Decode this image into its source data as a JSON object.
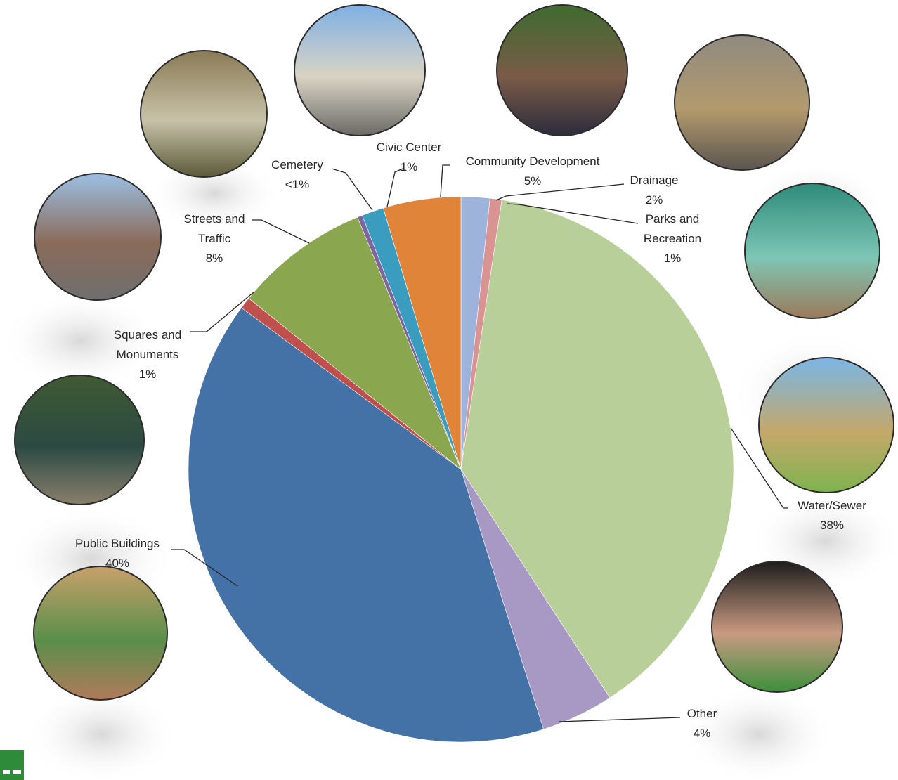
{
  "chart_data": {
    "type": "pie",
    "title": "",
    "slices": [
      {
        "name": "Drainage",
        "value": 1.7,
        "value_label": "2%",
        "color": "#9db3dc"
      },
      {
        "name": "Parks and Recreation",
        "value": 0.7,
        "value_label": "1%",
        "color": "#d99393"
      },
      {
        "name": "Water/Sewer",
        "value": 38.4,
        "value_label": "38%",
        "color": "#b8cf99"
      },
      {
        "name": "Other",
        "value": 4.3,
        "value_label": "4%",
        "color": "#a899c4"
      },
      {
        "name": "Public Buildings",
        "value": 40.0,
        "value_label": "40%",
        "color": "#4472a6"
      },
      {
        "name": "Squares and Monuments",
        "value": 0.7,
        "value_label": "1%",
        "color": "#c0504d"
      },
      {
        "name": "Streets and Traffic",
        "value": 8.0,
        "value_label": "8%",
        "color": "#8aa64f"
      },
      {
        "name": "Cemetery",
        "value": 0.3,
        "value_label": "<1%",
        "color": "#7e64a0"
      },
      {
        "name": "Civic Center",
        "value": 1.3,
        "value_label": "1%",
        "color": "#3a9cbf"
      },
      {
        "name": "Community Development",
        "value": 4.6,
        "value_label": "5%",
        "color": "#e0843a"
      }
    ],
    "start": "12 o'clock, clockwise",
    "legend": "none (leader-line data labels)"
  },
  "labels": [
    {
      "lines": [
        "Drainage",
        "2%"
      ]
    },
    {
      "lines": [
        "Parks and",
        "Recreation",
        "1%"
      ]
    },
    {
      "lines": [
        "Water/Sewer",
        "38%"
      ]
    },
    {
      "lines": [
        "Other",
        "4%"
      ]
    },
    {
      "lines": [
        "Public Buildings",
        "40%"
      ]
    },
    {
      "lines": [
        "Squares and",
        "Monuments",
        "1%"
      ]
    },
    {
      "lines": [
        "Streets and",
        "Traffic",
        "8%"
      ]
    },
    {
      "lines": [
        "Cemetery",
        "<1%"
      ]
    },
    {
      "lines": [
        "Civic Center",
        "1%"
      ]
    },
    {
      "lines": [
        "Community Development",
        "5%"
      ]
    }
  ],
  "photos": [
    {
      "name": "cemetery-photo",
      "colors": [
        "#8a7a55",
        "#c7c2a8",
        "#5c5a3a"
      ]
    },
    {
      "name": "civic-center-photo",
      "colors": [
        "#7fb0e4",
        "#d9d3c4",
        "#6b6a66"
      ]
    },
    {
      "name": "community-development-photo",
      "colors": [
        "#3f6b2f",
        "#7a5b48",
        "#2c2c3c"
      ]
    },
    {
      "name": "drainage-photo",
      "colors": [
        "#8f8a80",
        "#b39a6d",
        "#5a554f"
      ]
    },
    {
      "name": "streets-photo",
      "colors": [
        "#9cbfe3",
        "#8a6b5a",
        "#6f6f6f"
      ]
    },
    {
      "name": "playground-photo",
      "colors": [
        "#2e8b7a",
        "#7ec6b5",
        "#9b7a5a"
      ]
    },
    {
      "name": "fountain-photo",
      "colors": [
        "#3f5a32",
        "#2c4a43",
        "#8a7f6c"
      ]
    },
    {
      "name": "water-pipe-photo",
      "colors": [
        "#7ab6e6",
        "#c4a86a",
        "#7fb34f"
      ]
    },
    {
      "name": "public-buildings-photo",
      "colors": [
        "#c7a06a",
        "#5a8f4a",
        "#b07a5a"
      ]
    },
    {
      "name": "keyboard-photo",
      "colors": [
        "#1d1d1d",
        "#c99a82",
        "#3c8f3a"
      ]
    }
  ],
  "colors": {
    "logo_green": "#2e8b3a",
    "text": "#262626"
  }
}
